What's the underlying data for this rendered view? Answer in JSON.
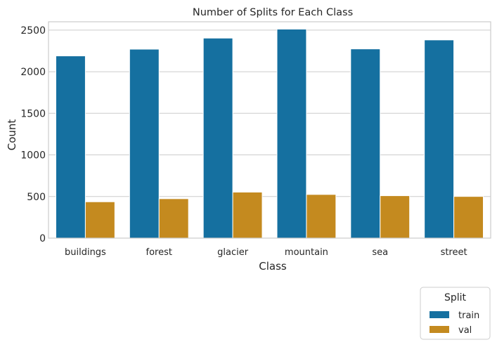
{
  "chart_data": {
    "type": "bar",
    "title": "Number of Splits for Each Class",
    "xlabel": "Class",
    "ylabel": "Count",
    "categories": [
      "buildings",
      "forest",
      "glacier",
      "mountain",
      "sea",
      "street"
    ],
    "series": [
      {
        "name": "train",
        "color": "#1570a0",
        "values": [
          2190,
          2271,
          2404,
          2512,
          2274,
          2382
        ]
      },
      {
        "name": "val",
        "color": "#c48a1f",
        "values": [
          437,
          474,
          553,
          525,
          510,
          501
        ]
      }
    ],
    "ylim": [
      0,
      2600
    ],
    "yticks": [
      0,
      500,
      1000,
      1500,
      2000,
      2500
    ],
    "grid": true,
    "legend": {
      "title": "Split",
      "placement": "bottom-right, outside plot"
    }
  }
}
